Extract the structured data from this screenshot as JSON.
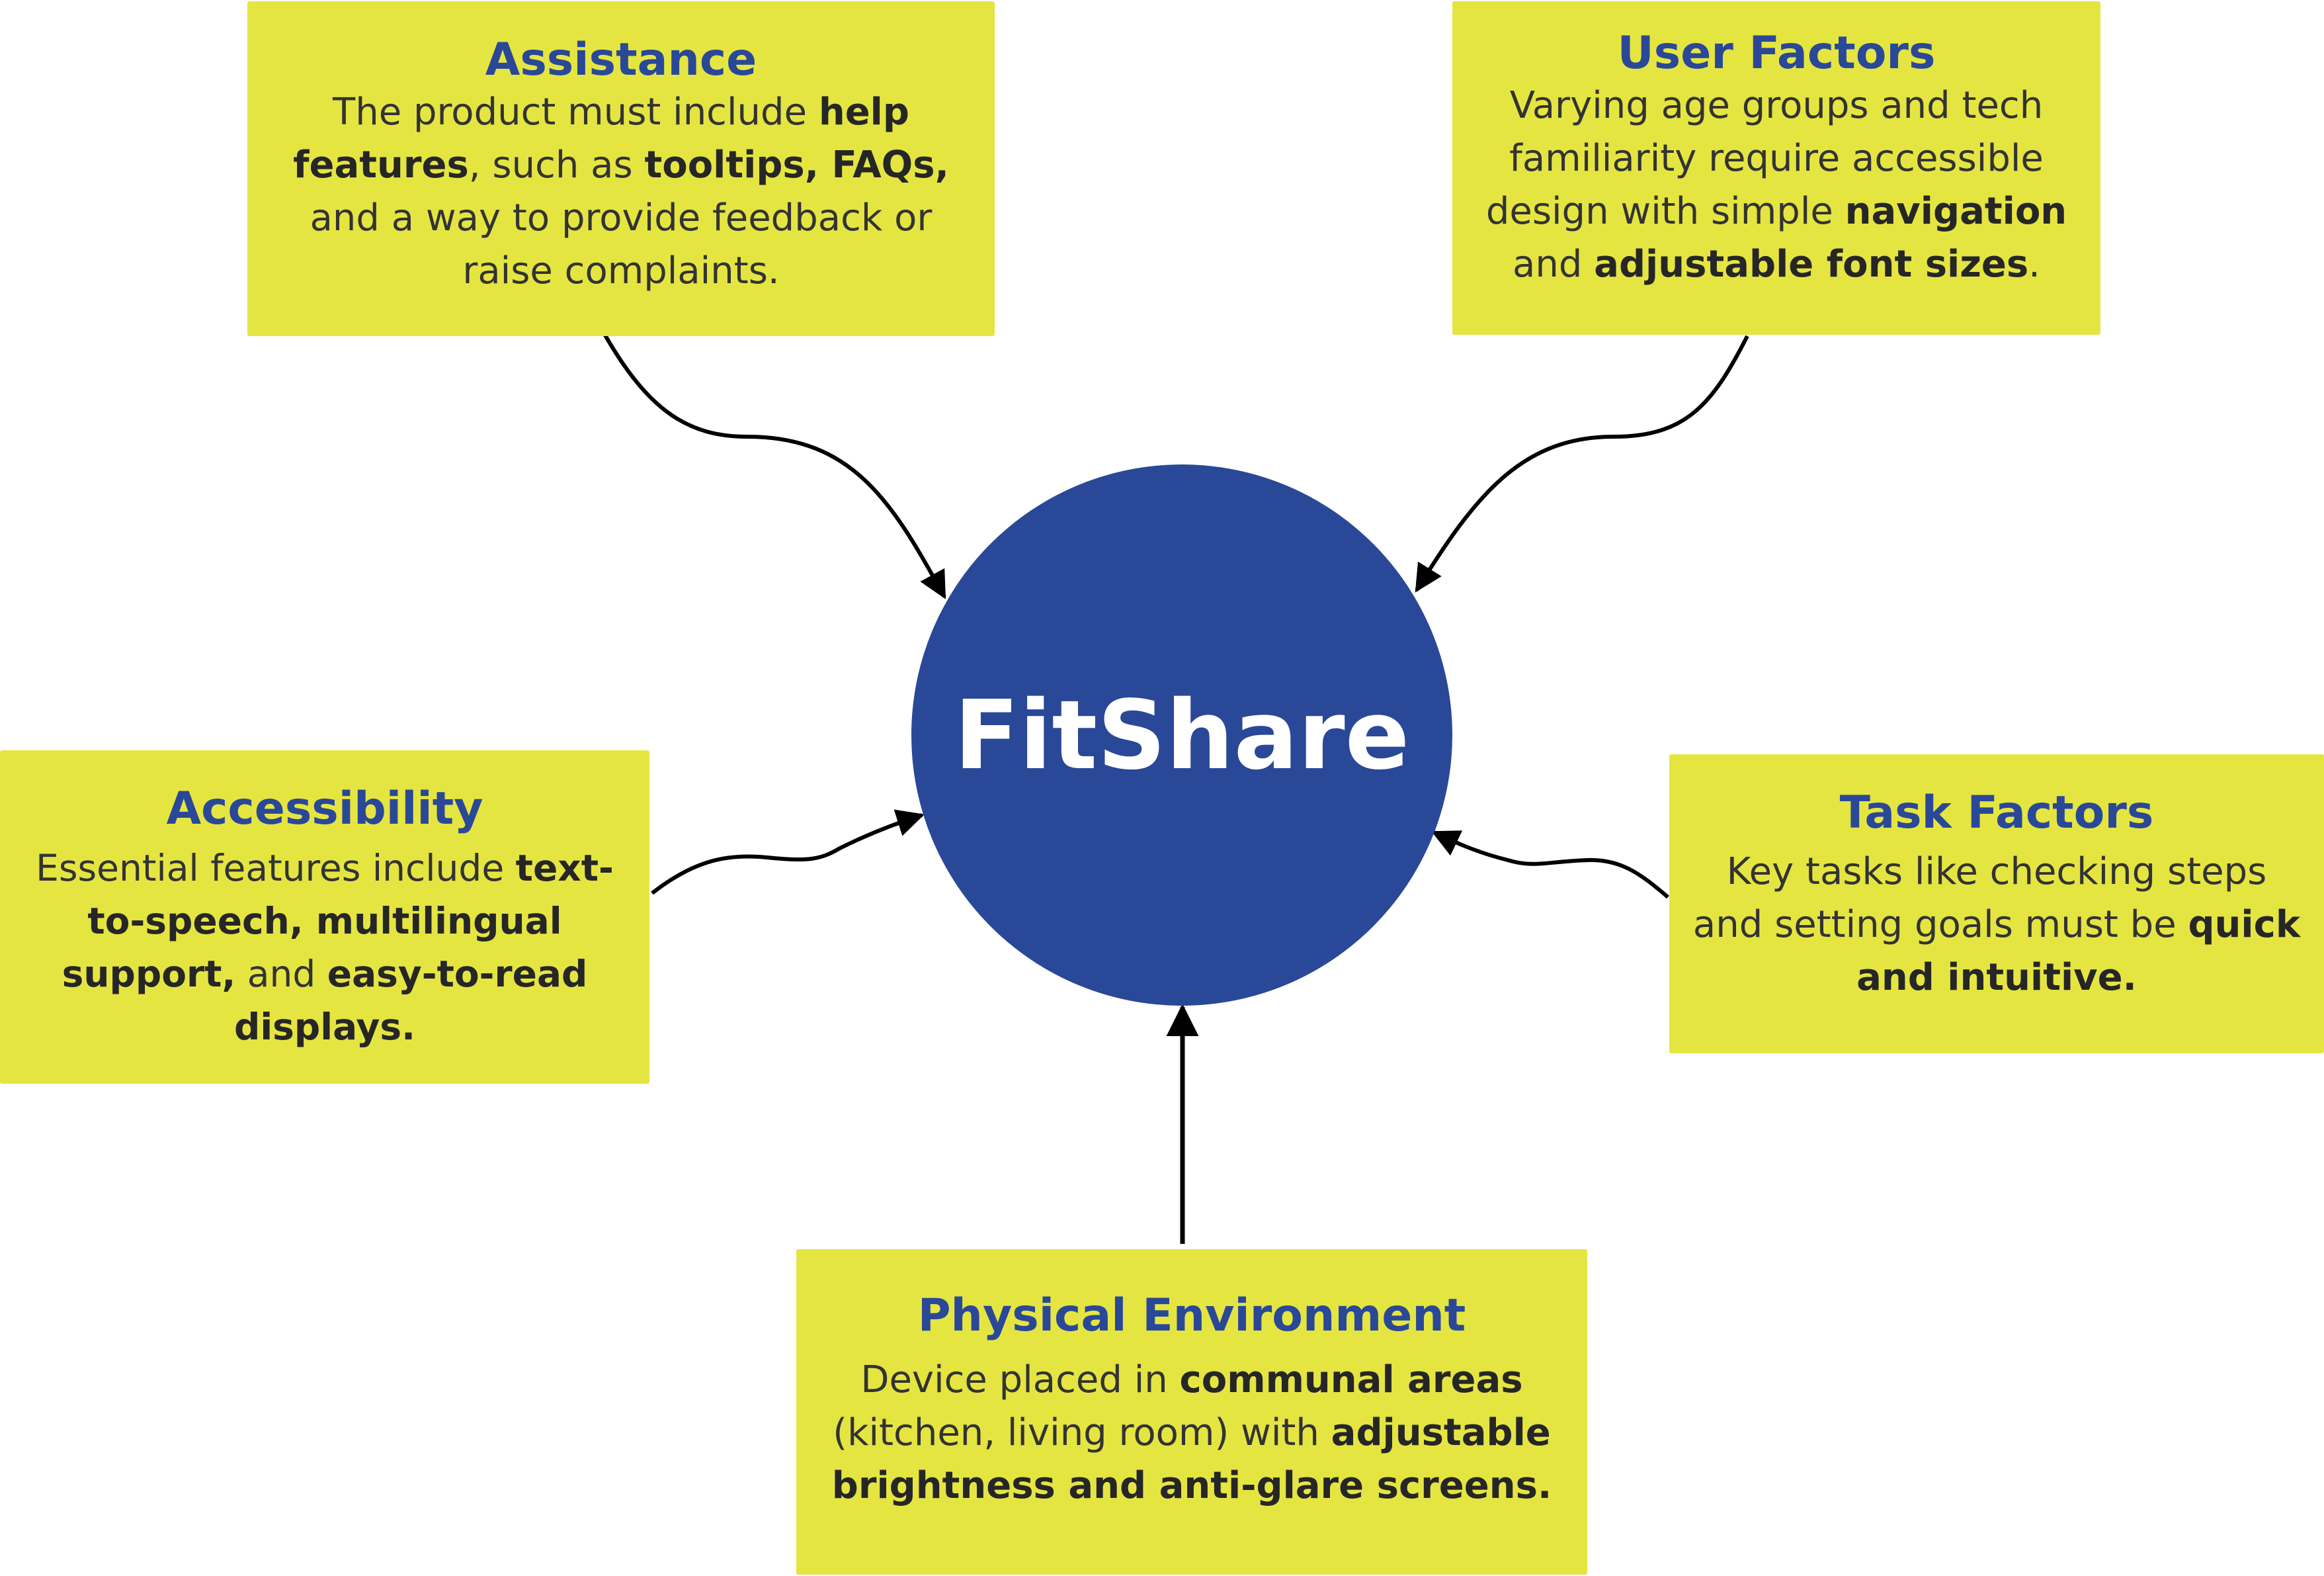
{
  "center": {
    "label": "FitShare"
  },
  "cards": {
    "assistance": {
      "title": "Assistance",
      "segments": [
        {
          "text": "The product must include ",
          "bold": false
        },
        {
          "text": "help features",
          "bold": true
        },
        {
          "text": ", such as ",
          "bold": false
        },
        {
          "text": "tooltips, FAQs,",
          "bold": true
        },
        {
          "text": " and a way to provide feedback or raise complaints.",
          "bold": false
        }
      ]
    },
    "user_factors": {
      "title": "User Factors",
      "segments": [
        {
          "text": "Varying age groups and tech familiarity require accessible design with simple ",
          "bold": false
        },
        {
          "text": "navigation",
          "bold": true
        },
        {
          "text": " and ",
          "bold": false
        },
        {
          "text": "adjustable font sizes",
          "bold": true
        },
        {
          "text": ".",
          "bold": false
        }
      ]
    },
    "accessibility": {
      "title": "Accessibility",
      "segments": [
        {
          "text": "Essential features include ",
          "bold": false
        },
        {
          "text": "text-to-speech, multilingual support,",
          "bold": true
        },
        {
          "text": " and ",
          "bold": false
        },
        {
          "text": "easy-to-read displays.",
          "bold": true
        }
      ]
    },
    "task_factors": {
      "title": "Task Factors",
      "segments": [
        {
          "text": "Key tasks like checking steps and setting goals must be ",
          "bold": false
        },
        {
          "text": "quick and intuitive.",
          "bold": true
        }
      ]
    },
    "physical_environment": {
      "title": "Physical Environment",
      "segments": [
        {
          "text": "Device placed in ",
          "bold": false
        },
        {
          "text": "communal areas",
          "bold": true
        },
        {
          "text": " (kitchen, living room) with ",
          "bold": false
        },
        {
          "text": "adjustable brightness and anti-glare screens.",
          "bold": true
        }
      ]
    }
  },
  "colors": {
    "card_background": "#e5e542",
    "title_color": "#2a4898",
    "hub_fill": "#2a4898",
    "hub_text": "#ffffff",
    "arrow_color": "#000000"
  }
}
